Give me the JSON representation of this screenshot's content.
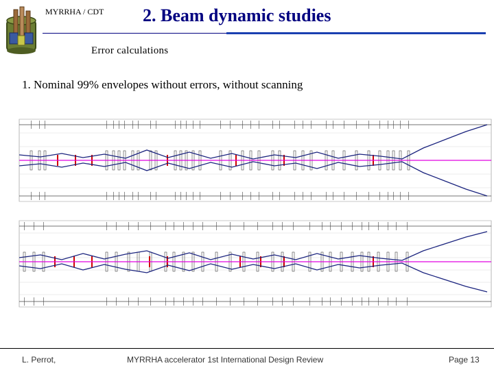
{
  "header": {
    "org": "MYRRHA / CDT",
    "title": "2. Beam dynamic studies",
    "subtitle": "Error calculations",
    "heading": "1. Nominal 99% envelopes without errors, without scanning"
  },
  "footer": {
    "author": "L. Perrot,",
    "event": "MYRRHA accelerator 1st International Design Review",
    "page": "Page 13"
  },
  "colors": {
    "title": "#000080",
    "accent_rule": "#1a3fb0",
    "beam_axis": "#e000e0",
    "envelope": "#1a237e",
    "cavity_marker": "#d00000",
    "element_outline": "#444444"
  },
  "icons": {
    "logo": "reactor-icon"
  }
}
